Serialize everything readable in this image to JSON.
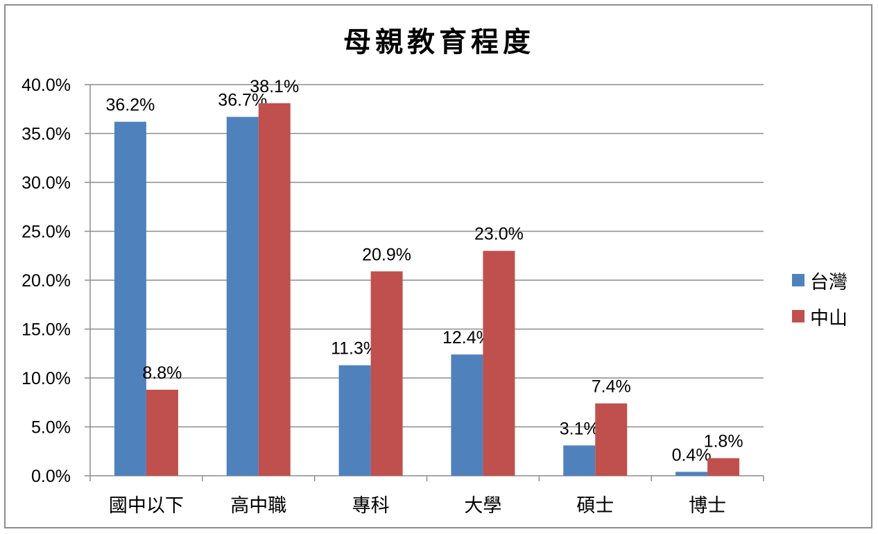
{
  "chart_data": {
    "type": "bar",
    "title": "母親教育程度",
    "categories": [
      "國中以下",
      "高中職",
      "專科",
      "大學",
      "碩士",
      "博士"
    ],
    "series": [
      {
        "name": "台灣",
        "color": "#4f81bd",
        "values": [
          36.2,
          36.7,
          11.3,
          12.4,
          3.1,
          0.4
        ],
        "labels": [
          "36.2%",
          "36.7%",
          "11.3%",
          "12.4%",
          "3.1%",
          "0.4%"
        ]
      },
      {
        "name": "中山",
        "color": "#c0504d",
        "values": [
          8.8,
          38.1,
          20.9,
          23.0,
          7.4,
          1.8
        ],
        "labels": [
          "8.8%",
          "38.1%",
          "20.9%",
          "23.0%",
          "7.4%",
          "1.8%"
        ]
      }
    ],
    "ylim": [
      0,
      40
    ],
    "yticks": [
      "0.0%",
      "5.0%",
      "10.0%",
      "15.0%",
      "20.0%",
      "25.0%",
      "30.0%",
      "35.0%",
      "40.0%"
    ],
    "grid": true,
    "legend_position": "right"
  }
}
